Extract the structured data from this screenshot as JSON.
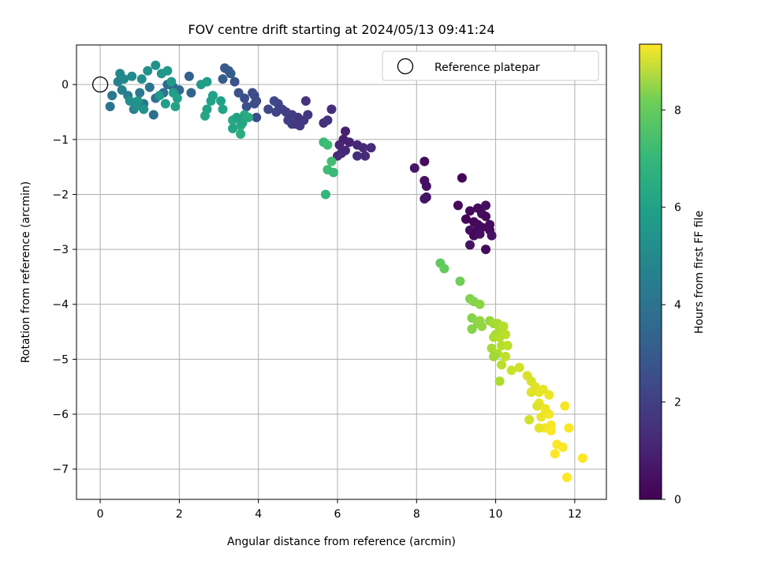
{
  "chart_data": {
    "type": "scatter",
    "title": "FOV centre drift starting at 2024/05/13 09:41:24",
    "xlabel": "Angular distance from reference (arcmin)",
    "ylabel": "Rotation from reference (arcmin)",
    "xlim": [
      -0.6,
      12.8
    ],
    "ylim": [
      -7.55,
      0.72
    ],
    "xticks": [
      0,
      2,
      4,
      6,
      8,
      10,
      12
    ],
    "yticks": [
      0,
      -1,
      -2,
      -3,
      -4,
      -5,
      -6,
      -7
    ],
    "grid": true,
    "legend": {
      "position": "top-right",
      "entries": [
        "Reference platepar"
      ]
    },
    "colorbar": {
      "label": "Hours from first FF file",
      "range": [
        0,
        9.35
      ],
      "ticks": [
        0,
        2,
        4,
        6,
        8
      ],
      "colormap": "viridis"
    },
    "reference_point": {
      "x": 0,
      "y": 0
    },
    "points": [
      [
        9.15,
        -1.7,
        0.1
      ],
      [
        9.05,
        -2.2,
        0.15
      ],
      [
        9.35,
        -2.3,
        0.2
      ],
      [
        9.55,
        -2.25,
        0.25
      ],
      [
        9.65,
        -2.35,
        0.3
      ],
      [
        9.75,
        -2.2,
        0.35
      ],
      [
        9.25,
        -2.45,
        0.1
      ],
      [
        9.45,
        -2.5,
        0.15
      ],
      [
        9.55,
        -2.55,
        0.2
      ],
      [
        9.75,
        -2.4,
        0.25
      ],
      [
        9.85,
        -2.55,
        0.3
      ],
      [
        9.35,
        -2.65,
        0.35
      ],
      [
        9.55,
        -2.65,
        0.2
      ],
      [
        9.65,
        -2.6,
        0.25
      ],
      [
        9.85,
        -2.65,
        0.3
      ],
      [
        9.45,
        -2.75,
        0.15
      ],
      [
        9.6,
        -2.72,
        0.4
      ],
      [
        9.9,
        -2.75,
        0.45
      ],
      [
        9.35,
        -2.92,
        0.5
      ],
      [
        9.75,
        -3.0,
        0.2
      ],
      [
        8.2,
        -1.4,
        0.3
      ],
      [
        8.2,
        -1.75,
        0.35
      ],
      [
        8.25,
        -1.85,
        0.4
      ],
      [
        8.25,
        -2.05,
        0.45
      ],
      [
        8.2,
        -2.08,
        0.5
      ],
      [
        7.95,
        -1.52,
        0.55
      ],
      [
        6.2,
        -0.85,
        0.8
      ],
      [
        6.15,
        -1.0,
        0.85
      ],
      [
        6.3,
        -1.05,
        0.9
      ],
      [
        6.05,
        -1.1,
        0.95
      ],
      [
        6.2,
        -1.2,
        1.0
      ],
      [
        6.1,
        -1.25,
        1.05
      ],
      [
        6.0,
        -1.3,
        1.1
      ],
      [
        6.5,
        -1.1,
        1.0
      ],
      [
        6.65,
        -1.15,
        1.05
      ],
      [
        6.85,
        -1.15,
        1.1
      ],
      [
        6.7,
        -1.3,
        1.15
      ],
      [
        6.5,
        -1.3,
        1.2
      ],
      [
        5.65,
        -0.7,
        1.3
      ],
      [
        5.75,
        -0.65,
        1.35
      ],
      [
        5.2,
        -0.3,
        1.4
      ],
      [
        5.25,
        -0.55,
        1.45
      ],
      [
        5.15,
        -0.65,
        1.5
      ],
      [
        5.0,
        -0.6,
        1.55
      ],
      [
        4.85,
        -0.55,
        1.6
      ],
      [
        5.05,
        -0.75,
        1.65
      ],
      [
        4.85,
        -0.72,
        1.7
      ],
      [
        4.75,
        -0.65,
        1.75
      ],
      [
        4.7,
        -0.5,
        1.8
      ],
      [
        4.6,
        -0.45,
        1.85
      ],
      [
        4.45,
        -0.5,
        1.9
      ],
      [
        4.5,
        -0.35,
        1.95
      ],
      [
        4.4,
        -0.3,
        2.0
      ],
      [
        4.25,
        -0.45,
        2.05
      ],
      [
        3.9,
        -0.2,
        2.1
      ],
      [
        3.95,
        -0.3,
        2.15
      ],
      [
        3.85,
        -0.15,
        2.2
      ],
      [
        3.65,
        -0.25,
        2.25
      ],
      [
        3.7,
        -0.4,
        2.3
      ],
      [
        3.5,
        -0.15,
        2.35
      ],
      [
        3.4,
        0.05,
        2.4
      ],
      [
        3.25,
        0.25,
        2.5
      ],
      [
        3.15,
        0.3,
        2.6
      ],
      [
        3.3,
        0.2,
        2.7
      ],
      [
        3.1,
        0.1,
        2.75
      ],
      [
        3.9,
        -0.35,
        2.2
      ],
      [
        4.95,
        -0.72,
        1.5
      ],
      [
        3.95,
        -0.6,
        2.15
      ],
      [
        5.85,
        -0.45,
        1.2
      ],
      [
        2.25,
        0.15,
        2.9
      ],
      [
        2.3,
        -0.15,
        3.0
      ],
      [
        2.0,
        -0.1,
        3.1
      ],
      [
        1.85,
        -0.05,
        3.2
      ],
      [
        1.7,
        0.0,
        3.3
      ],
      [
        1.6,
        -0.15,
        3.4
      ],
      [
        1.4,
        -0.25,
        3.5
      ],
      [
        1.25,
        -0.05,
        3.6
      ],
      [
        1.35,
        -0.55,
        3.4
      ],
      [
        1.1,
        -0.35,
        3.7
      ],
      [
        1.0,
        -0.15,
        3.8
      ],
      [
        0.85,
        -0.45,
        3.9
      ],
      [
        0.7,
        -0.2,
        4.0
      ],
      [
        0.55,
        -0.1,
        4.1
      ],
      [
        0.45,
        0.05,
        4.2
      ],
      [
        0.5,
        0.2,
        4.3
      ],
      [
        0.3,
        -0.2,
        3.8
      ],
      [
        0.25,
        -0.4,
        3.6
      ],
      [
        0.6,
        0.1,
        4.4
      ],
      [
        0.8,
        0.15,
        4.5
      ],
      [
        1.05,
        0.1,
        4.6
      ],
      [
        1.2,
        0.25,
        4.7
      ],
      [
        1.4,
        0.35,
        4.8
      ],
      [
        1.55,
        0.2,
        4.9
      ],
      [
        1.7,
        0.25,
        5.0
      ],
      [
        1.8,
        0.05,
        5.1
      ],
      [
        1.85,
        -0.15,
        5.2
      ],
      [
        1.95,
        -0.25,
        5.3
      ],
      [
        1.9,
        -0.4,
        5.4
      ],
      [
        1.65,
        -0.35,
        5.2
      ],
      [
        1.5,
        -0.2,
        5.0
      ],
      [
        0.95,
        -0.3,
        4.9
      ],
      [
        1.1,
        -0.45,
        4.8
      ],
      [
        0.9,
        -0.4,
        4.7
      ],
      [
        0.75,
        -0.3,
        4.6
      ],
      [
        2.55,
        0.0,
        5.1
      ],
      [
        2.7,
        0.05,
        5.2
      ],
      [
        2.8,
        -0.3,
        5.3
      ],
      [
        2.7,
        -0.45,
        5.4
      ],
      [
        2.65,
        -0.57,
        5.5
      ],
      [
        2.85,
        -0.2,
        5.3
      ],
      [
        3.1,
        -0.45,
        5.4
      ],
      [
        3.05,
        -0.3,
        5.3
      ],
      [
        3.35,
        -0.65,
        5.6
      ],
      [
        3.35,
        -0.8,
        5.5
      ],
      [
        3.55,
        -0.75,
        5.7
      ],
      [
        3.55,
        -0.9,
        5.8
      ],
      [
        3.65,
        -0.55,
        5.6
      ],
      [
        3.6,
        -0.7,
        5.5
      ],
      [
        3.75,
        -0.6,
        5.7
      ],
      [
        3.45,
        -0.6,
        5.4
      ],
      [
        5.65,
        -1.05,
        6.3
      ],
      [
        5.75,
        -1.1,
        6.4
      ],
      [
        5.85,
        -1.4,
        6.5
      ],
      [
        5.75,
        -1.55,
        6.4
      ],
      [
        5.9,
        -1.6,
        6.3
      ],
      [
        5.7,
        -2.0,
        6.2
      ],
      [
        8.6,
        -3.25,
        7.0
      ],
      [
        8.7,
        -3.35,
        7.1
      ],
      [
        9.1,
        -3.58,
        7.3
      ],
      [
        9.35,
        -3.9,
        7.5
      ],
      [
        9.45,
        -3.95,
        7.6
      ],
      [
        9.6,
        -4.0,
        7.7
      ],
      [
        9.4,
        -4.25,
        7.6
      ],
      [
        9.55,
        -4.35,
        7.7
      ],
      [
        9.6,
        -4.3,
        7.8
      ],
      [
        9.4,
        -4.45,
        7.6
      ],
      [
        9.65,
        -4.4,
        7.8
      ],
      [
        9.85,
        -4.3,
        7.9
      ],
      [
        9.95,
        -4.35,
        8.0
      ],
      [
        10.05,
        -4.35,
        8.1
      ],
      [
        10.1,
        -4.45,
        8.2
      ],
      [
        10.2,
        -4.4,
        8.3
      ],
      [
        10.0,
        -4.55,
        8.1
      ],
      [
        9.95,
        -4.6,
        8.2
      ],
      [
        10.1,
        -4.6,
        8.3
      ],
      [
        10.25,
        -4.55,
        8.4
      ],
      [
        10.15,
        -4.75,
        8.3
      ],
      [
        9.9,
        -4.8,
        8.1
      ],
      [
        10.05,
        -4.9,
        8.2
      ],
      [
        9.95,
        -4.95,
        8.0
      ],
      [
        10.3,
        -4.75,
        8.4
      ],
      [
        10.25,
        -4.95,
        8.5
      ],
      [
        10.15,
        -5.1,
        8.4
      ],
      [
        10.1,
        -5.4,
        8.2
      ],
      [
        10.4,
        -5.2,
        8.6
      ],
      [
        10.6,
        -5.15,
        8.7
      ],
      [
        10.8,
        -5.3,
        8.8
      ],
      [
        10.9,
        -5.4,
        8.8
      ],
      [
        11.0,
        -5.5,
        8.9
      ],
      [
        10.9,
        -5.6,
        8.9
      ],
      [
        11.1,
        -5.6,
        9.0
      ],
      [
        11.2,
        -5.55,
        9.0
      ],
      [
        11.35,
        -5.65,
        9.1
      ],
      [
        11.1,
        -5.8,
        9.0
      ],
      [
        11.25,
        -5.9,
        9.1
      ],
      [
        11.15,
        -6.05,
        9.1
      ],
      [
        11.35,
        -6.0,
        9.2
      ],
      [
        11.4,
        -6.2,
        9.2
      ],
      [
        11.25,
        -6.25,
        9.2
      ],
      [
        11.4,
        -6.3,
        9.3
      ],
      [
        11.75,
        -5.85,
        9.2
      ],
      [
        11.85,
        -6.25,
        9.3
      ],
      [
        11.55,
        -6.55,
        9.3
      ],
      [
        11.5,
        -6.72,
        9.3
      ],
      [
        11.7,
        -6.6,
        9.3
      ],
      [
        11.8,
        -7.15,
        9.35
      ],
      [
        12.2,
        -6.8,
        9.35
      ],
      [
        10.85,
        -6.1,
        8.7
      ],
      [
        11.1,
        -6.25,
        9.0
      ],
      [
        11.05,
        -5.85,
        8.9
      ]
    ]
  }
}
